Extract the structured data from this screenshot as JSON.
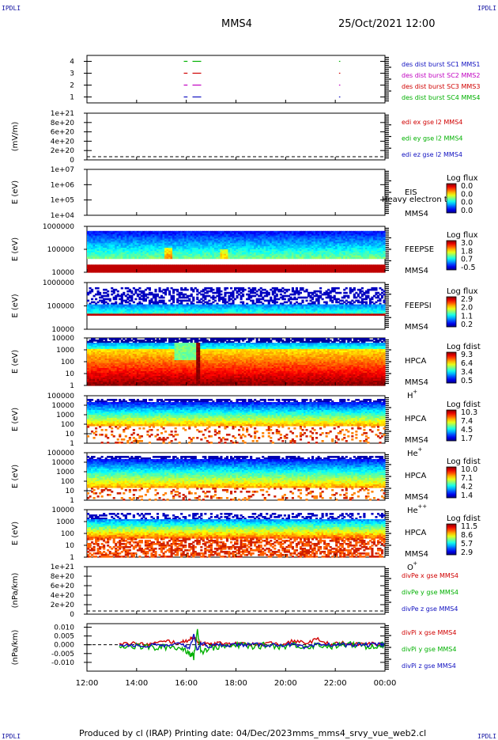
{
  "header": {
    "corner_label": "IPDLI",
    "spacecraft": "MMS4",
    "datetime": "25/Oct/2021 12:00"
  },
  "footer": {
    "produced_by": "Produced by cl (IRAP)",
    "printing_date": "Printing date: 04/Dec/2023",
    "filename": "mms_mms4_srvy_vue_web2.cl"
  },
  "time_axis": {
    "ticks": [
      "12:00",
      "14:00",
      "16:00",
      "18:00",
      "20:00",
      "22:00",
      "00:00"
    ],
    "hours": [
      12,
      14,
      16,
      18,
      20,
      22,
      24
    ]
  },
  "chart_data": [
    {
      "type": "line",
      "title": "",
      "ylabel": "",
      "ylim": [
        0.5,
        4.5
      ],
      "yticks": [
        "1",
        "2",
        "3",
        "4"
      ],
      "legend": [
        {
          "text": "des dist burst SC1 MMS1",
          "color": "#1010c0"
        },
        {
          "text": "des dist burst SC2 MMS2",
          "color": "#c000c0"
        },
        {
          "text": "des dist burst SC3 MMS3",
          "color": "#d00000"
        },
        {
          "text": "des dist burst SC4 MMS4",
          "color": "#00b000"
        }
      ],
      "series": [
        {
          "level": 4,
          "color": "#00b000",
          "segments": [
            [
              15.9,
              16.05
            ],
            [
              16.25,
              16.6
            ],
            [
              22.15,
              22.2
            ]
          ]
        },
        {
          "level": 3,
          "color": "#d00000",
          "segments": [
            [
              15.9,
              16.05
            ],
            [
              16.25,
              16.6
            ],
            [
              22.15,
              22.2
            ]
          ]
        },
        {
          "level": 2,
          "color": "#c000c0",
          "segments": [
            [
              15.9,
              16.05
            ],
            [
              16.25,
              16.6
            ],
            [
              22.15,
              22.2
            ]
          ]
        },
        {
          "level": 1,
          "color": "#1010c0",
          "segments": [
            [
              15.9,
              16.05
            ],
            [
              16.25,
              16.6
            ],
            [
              22.15,
              22.2
            ]
          ]
        }
      ]
    },
    {
      "type": "line",
      "title": "",
      "ylabel": "(mV/m)",
      "yticks": [
        "1e+21",
        "8e+20",
        "6e+20",
        "4e+20",
        "2e+20",
        "0"
      ],
      "legend": [
        {
          "text": "edi ex gse l2 MMS4",
          "color": "#d00000"
        },
        {
          "text": "edi ey gse l2 MMS4",
          "color": "#00b000"
        },
        {
          "text": "edi ez gse l2 MMS4",
          "color": "#1010c0"
        }
      ],
      "values": []
    },
    {
      "type": "heatmap",
      "ylabel": "E (eV)",
      "yscale": "log",
      "yticks": [
        "1e+07",
        "1e+06",
        "1e+05",
        "1e+04"
      ],
      "instrument": "EIS",
      "product": "Heavy electron to",
      "spacecraft": "MMS4",
      "colorbar": {
        "label": "Log flux",
        "ticks": [
          "0.0",
          "0.0",
          "0.0",
          "0.0"
        ]
      }
    },
    {
      "type": "heatmap",
      "ylabel": "E (eV)",
      "yscale": "log",
      "yticks": [
        "1000000",
        "100000",
        "10000"
      ],
      "instrument": "FEEPSE",
      "spacecraft": "MMS4",
      "colorbar": {
        "label": "Log flux",
        "ticks": [
          "3.0",
          "1.8",
          "0.7",
          "-0.5"
        ]
      }
    },
    {
      "type": "heatmap",
      "ylabel": "E (eV)",
      "yscale": "log",
      "yticks": [
        "1000000",
        "100000",
        "10000"
      ],
      "instrument": "FEEPSI",
      "spacecraft": "MMS4",
      "colorbar": {
        "label": "Log flux",
        "ticks": [
          "2.9",
          "2.0",
          "1.1",
          "0.2"
        ]
      }
    },
    {
      "type": "heatmap",
      "ylabel": "E (eV)",
      "yscale": "log",
      "yticks": [
        "10000",
        "1000",
        "100",
        "10",
        "1"
      ],
      "instrument": "HPCA",
      "spacecraft": "MMS4",
      "species": "H",
      "charge": "+",
      "colorbar": {
        "label": "Log fdist",
        "ticks": [
          "9.3",
          "6.4",
          "3.4",
          "0.5"
        ]
      }
    },
    {
      "type": "heatmap",
      "ylabel": "E (eV)",
      "yscale": "log",
      "yticks": [
        "100000",
        "10000",
        "1000",
        "100",
        "10",
        "1"
      ],
      "instrument": "HPCA",
      "spacecraft": "MMS4",
      "species": "He",
      "charge": "+",
      "colorbar": {
        "label": "Log fdist",
        "ticks": [
          "10.3",
          "7.4",
          "4.5",
          "1.7"
        ]
      }
    },
    {
      "type": "heatmap",
      "ylabel": "E (eV)",
      "yscale": "log",
      "yticks": [
        "100000",
        "10000",
        "1000",
        "100",
        "10",
        "1"
      ],
      "instrument": "HPCA",
      "spacecraft": "MMS4",
      "species": "He",
      "charge": "++",
      "colorbar": {
        "label": "Log fdist",
        "ticks": [
          "10.0",
          "7.1",
          "4.2",
          "1.4"
        ]
      }
    },
    {
      "type": "heatmap",
      "ylabel": "E (eV)",
      "yscale": "log",
      "yticks": [
        "10000",
        "1000",
        "100",
        "10",
        "1"
      ],
      "instrument": "HPCA",
      "spacecraft": "MMS4",
      "species": "O",
      "charge": "+",
      "colorbar": {
        "label": "Log fdist",
        "ticks": [
          "11.5",
          "8.6",
          "5.7",
          "2.9"
        ]
      }
    },
    {
      "type": "line",
      "ylabel": "(nPa/km)",
      "yticks": [
        "1e+21",
        "8e+20",
        "6e+20",
        "4e+20",
        "2e+20",
        "0"
      ],
      "legend": [
        {
          "text": "divPe x gse MMS4",
          "color": "#d00000"
        },
        {
          "text": "divPe y gse MMS4",
          "color": "#00b000"
        },
        {
          "text": "divPe z gse MMS4",
          "color": "#1010c0"
        }
      ],
      "values": []
    },
    {
      "type": "line",
      "ylabel": "(nPa/km)",
      "ylim": [
        -0.015,
        0.012
      ],
      "yticks": [
        "0.010",
        "0.005",
        "0.000",
        "-0.005",
        "-0.010"
      ],
      "ytick_values": [
        0.01,
        0.005,
        0.0,
        -0.005,
        -0.01
      ],
      "legend": [
        {
          "text": "divPi x gse MMS4",
          "color": "#d00000"
        },
        {
          "text": "divPi y gse MMS4",
          "color": "#00b000"
        },
        {
          "text": "divPi z gse MMS4",
          "color": "#1010c0"
        }
      ],
      "x": [
        13.3,
        13.8,
        14.3,
        14.8,
        15.3,
        15.8,
        16.1,
        16.3,
        16.45,
        16.6,
        16.9,
        17.3,
        17.8,
        18.3,
        18.8,
        19.3,
        19.8,
        20.3,
        20.8,
        21.3,
        21.8,
        22.3,
        22.8,
        23.3,
        23.8,
        24.0
      ],
      "series": [
        {
          "name": "divPi x gse MMS4",
          "color": "#d00000",
          "values": [
            0.0,
            0.001,
            0.0,
            0.001,
            0.002,
            0.001,
            0.003,
            0.004,
            0.002,
            0.001,
            0.0,
            0.001,
            0.0,
            0.001,
            0.0,
            0.001,
            0.0,
            0.002,
            0.001,
            0.003,
            0.0,
            0.001,
            0.0,
            0.001,
            0.0,
            0.0
          ]
        },
        {
          "name": "divPi y gse MMS4",
          "color": "#00b000",
          "values": [
            0.0,
            -0.001,
            -0.001,
            -0.002,
            -0.001,
            -0.002,
            -0.004,
            -0.007,
            0.008,
            -0.004,
            -0.002,
            -0.001,
            -0.001,
            0.0,
            -0.001,
            0.0,
            -0.001,
            0.0,
            -0.001,
            0.0,
            -0.001,
            0.0,
            0.0,
            -0.001,
            0.0,
            0.0
          ]
        },
        {
          "name": "divPi z gse MMS4",
          "color": "#1010c0",
          "values": [
            0.0,
            0.0,
            -0.001,
            0.0,
            -0.001,
            0.001,
            -0.002,
            0.005,
            -0.003,
            0.001,
            -0.001,
            0.0,
            0.0,
            0.0,
            0.0,
            0.0,
            0.0,
            0.0,
            -0.002,
            0.0,
            0.0,
            0.0,
            0.0,
            0.0,
            0.0,
            0.0
          ]
        }
      ]
    }
  ]
}
